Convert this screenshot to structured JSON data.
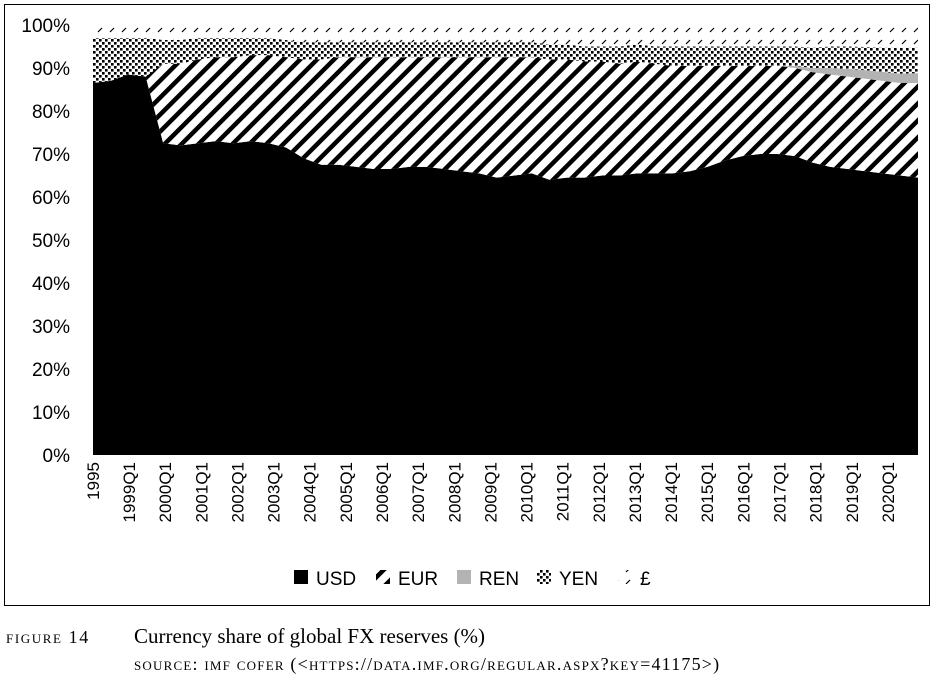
{
  "chart_data": {
    "type": "area",
    "stacked": true,
    "title": "",
    "xlabel": "",
    "ylabel": "",
    "ylim": [
      0,
      100
    ],
    "yticks": [
      "0%",
      "10%",
      "20%",
      "30%",
      "40%",
      "50%",
      "60%",
      "70%",
      "80%",
      "90%",
      "100%"
    ],
    "xticks": [
      "1995",
      "1999Q1",
      "2000Q1",
      "2001Q1",
      "2002Q1",
      "2003Q1",
      "2004Q1",
      "2005Q1",
      "2006Q1",
      "2007Q1",
      "2008Q1",
      "2009Q1",
      "2010Q1",
      "2011Q1",
      "2012Q1",
      "2013Q1",
      "2014Q1",
      "2015Q1",
      "2016Q1",
      "2017Q1",
      "2018Q1",
      "2019Q1",
      "2020Q1"
    ],
    "x": [
      "1995",
      "1996",
      "1997",
      "1998",
      "1999Q1",
      "1999Q3",
      "2000Q1",
      "2000Q3",
      "2001Q1",
      "2001Q3",
      "2002Q1",
      "2002Q3",
      "2003Q1",
      "2003Q3",
      "2004Q1",
      "2004Q3",
      "2005Q1",
      "2005Q3",
      "2006Q1",
      "2006Q3",
      "2007Q1",
      "2007Q3",
      "2008Q1",
      "2008Q3",
      "2009Q1",
      "2009Q3",
      "2010Q1",
      "2010Q3",
      "2011Q1",
      "2011Q3",
      "2012Q1",
      "2012Q3",
      "2013Q1",
      "2013Q3",
      "2014Q1",
      "2014Q3",
      "2015Q1",
      "2015Q3",
      "2016Q1",
      "2016Q3",
      "2017Q1",
      "2017Q3",
      "2018Q1",
      "2018Q3",
      "2019Q1",
      "2019Q3",
      "2020Q1",
      "2020Q3"
    ],
    "series": [
      {
        "name": "USD",
        "pattern": "solid",
        "values": [
          86.5,
          87.0,
          88.5,
          88.0,
          72.5,
          72.0,
          72.5,
          73.0,
          72.5,
          73.0,
          72.5,
          71.5,
          69.0,
          67.5,
          67.5,
          67.0,
          66.5,
          66.5,
          67.0,
          67.0,
          66.5,
          66.0,
          65.5,
          64.5,
          65.0,
          65.5,
          64.0,
          64.5,
          64.5,
          65.0,
          65.0,
          65.5,
          65.5,
          65.5,
          66.0,
          67.0,
          68.5,
          69.5,
          70.0,
          70.0,
          69.5,
          68.0,
          67.0,
          66.5,
          66.0,
          65.5,
          65.0,
          64.5
        ]
      },
      {
        "name": "EUR",
        "pattern": "diagonal-hatch",
        "values": [
          0,
          0,
          0,
          0,
          18.5,
          19.0,
          19.5,
          19.5,
          20.0,
          20.0,
          20.5,
          21.0,
          23.0,
          24.5,
          25.0,
          25.5,
          26.0,
          26.0,
          25.5,
          25.5,
          26.0,
          26.5,
          27.0,
          28.0,
          27.5,
          27.0,
          28.0,
          27.5,
          27.0,
          26.5,
          26.0,
          26.0,
          25.5,
          25.0,
          24.5,
          23.5,
          22.0,
          21.0,
          20.5,
          20.5,
          20.5,
          21.0,
          21.5,
          21.5,
          21.5,
          21.5,
          21.5,
          22.0
        ]
      },
      {
        "name": "REN",
        "pattern": "light-gray",
        "values": [
          0,
          0,
          0,
          0,
          0,
          0,
          0,
          0,
          0,
          0,
          0,
          0,
          0,
          0,
          0,
          0,
          0,
          0,
          0,
          0,
          0,
          0,
          0,
          0,
          0,
          0,
          0,
          0,
          0,
          0,
          0,
          0,
          0,
          0,
          0,
          0,
          0,
          0,
          0,
          0,
          0.5,
          1.0,
          1.5,
          1.8,
          2.0,
          2.1,
          2.2,
          2.3
        ]
      },
      {
        "name": "YEN",
        "pattern": "dots",
        "values": [
          10.5,
          10.0,
          8.5,
          9.0,
          5.5,
          5.5,
          5.0,
          4.5,
          4.5,
          4.0,
          4.0,
          4.0,
          4.0,
          4.0,
          3.5,
          3.5,
          3.5,
          3.5,
          3.5,
          3.5,
          3.5,
          3.5,
          3.5,
          3.5,
          3.5,
          3.5,
          3.5,
          3.5,
          3.5,
          3.5,
          4.0,
          4.0,
          4.0,
          4.5,
          4.5,
          4.5,
          4.5,
          4.5,
          4.5,
          4.5,
          4.5,
          4.8,
          5.0,
          5.2,
          5.4,
          5.7,
          6.0,
          6.0
        ]
      },
      {
        "name": "£",
        "pattern": "sparse-hatch",
        "values": [
          3.0,
          3.0,
          3.0,
          3.0,
          3.5,
          3.5,
          3.0,
          3.0,
          3.0,
          3.0,
          3.0,
          3.5,
          4.0,
          4.0,
          4.0,
          4.0,
          4.0,
          4.0,
          4.0,
          4.0,
          4.0,
          4.0,
          4.0,
          4.0,
          4.0,
          4.0,
          4.5,
          4.5,
          5.0,
          5.0,
          5.0,
          4.5,
          5.0,
          5.0,
          5.0,
          5.0,
          5.0,
          5.0,
          5.0,
          5.0,
          5.0,
          5.2,
          5.0,
          5.0,
          5.1,
          5.2,
          5.3,
          5.2
        ]
      }
    ],
    "legend": [
      "USD",
      "EUR",
      "REN",
      "YEN",
      "£"
    ],
    "legend_position": "bottom"
  },
  "caption": {
    "figure_label": "FIGURE 14",
    "title": "Currency share of global FX reserves (%)",
    "source": "SOURCE: IMF COFER (<HTTPS://DATA.IMF.ORG/REGULAR.ASPX?KEY=41175>)"
  }
}
